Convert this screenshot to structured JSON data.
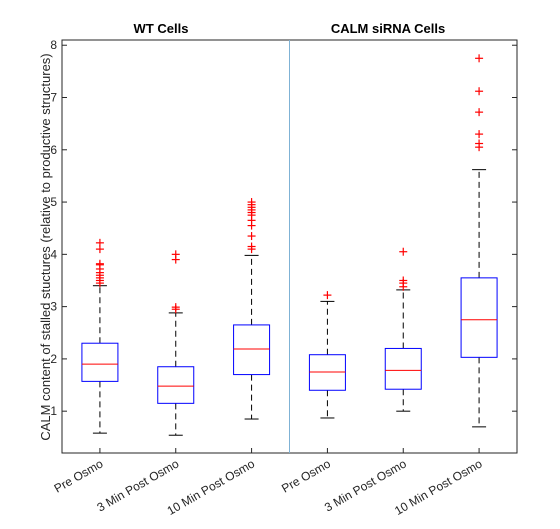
{
  "chart_data": {
    "type": "box",
    "ylabel": "CALM content of stalled stuctures (relative to productive structures)",
    "ylim": [
      0.2,
      8.1
    ],
    "yticks": [
      1,
      2,
      3,
      4,
      5,
      6,
      7,
      8
    ],
    "group_titles": [
      "WT Cells",
      "CALM siRNA Cells"
    ],
    "categories": [
      "Pre Osmo",
      "3 Min Post Osmo",
      "10 Min Post Osmo",
      "Pre Osmo",
      "3 Min Post Osmo",
      "10 Min Post Osmo"
    ],
    "colors": {
      "box": "#0000ff",
      "median": "#ff0000",
      "whisker": "#000000",
      "outlier": "#ff0000",
      "divider": "#7fb2d5"
    },
    "boxes": [
      {
        "group": "WT Cells",
        "category": "Pre Osmo",
        "whisker_low": 0.58,
        "q1": 1.57,
        "median": 1.9,
        "q3": 2.3,
        "whisker_high": 3.4,
        "outliers": [
          3.45,
          3.5,
          3.55,
          3.6,
          3.65,
          3.72,
          3.8,
          3.82,
          4.1,
          4.22
        ]
      },
      {
        "group": "WT Cells",
        "category": "3 Min Post Osmo",
        "whisker_low": 0.54,
        "q1": 1.15,
        "median": 1.48,
        "q3": 1.85,
        "whisker_high": 2.88,
        "outliers": [
          2.95,
          2.99,
          3.9,
          4.0
        ]
      },
      {
        "group": "WT Cells",
        "category": "10 Min Post Osmo",
        "whisker_low": 0.85,
        "q1": 1.7,
        "median": 2.19,
        "q3": 2.65,
        "whisker_high": 3.98,
        "outliers": [
          4.1,
          4.15,
          4.35,
          4.55,
          4.65,
          4.75,
          4.8,
          4.85,
          4.9,
          4.95,
          5.0
        ]
      },
      {
        "group": "CALM siRNA Cells",
        "category": "Pre Osmo",
        "whisker_low": 0.87,
        "q1": 1.4,
        "median": 1.75,
        "q3": 2.08,
        "whisker_high": 3.1,
        "outliers": [
          3.22
        ]
      },
      {
        "group": "CALM siRNA Cells",
        "category": "3 Min Post Osmo",
        "whisker_low": 1.0,
        "q1": 1.42,
        "median": 1.78,
        "q3": 2.2,
        "whisker_high": 3.32,
        "outliers": [
          3.38,
          3.45,
          3.5,
          4.05
        ]
      },
      {
        "group": "CALM siRNA Cells",
        "category": "10 Min Post Osmo",
        "whisker_low": 0.7,
        "q1": 2.03,
        "median": 2.75,
        "q3": 3.55,
        "whisker_high": 5.62,
        "outliers": [
          6.05,
          6.12,
          6.3,
          6.72,
          7.12,
          7.75
        ]
      }
    ]
  }
}
